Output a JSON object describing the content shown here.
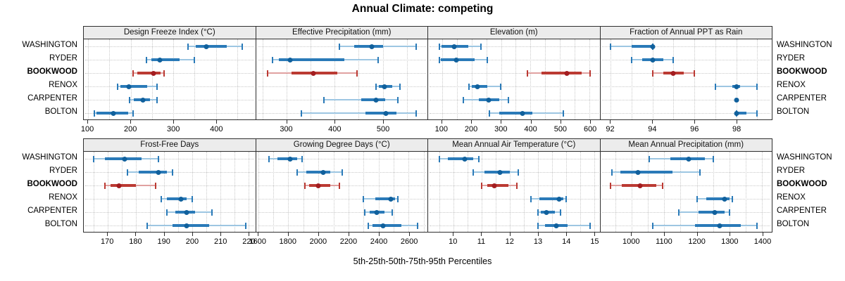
{
  "title": "Annual Climate: competing",
  "xlabel": "5th-25th-50th-75th-95th Percentiles",
  "colors": {
    "blue_whisker": "#9dc6e2",
    "blue_bar": "#2a7ab8",
    "blue_dot": "#10609c",
    "red_whisker": "#e0a1a0",
    "red_bar": "#bb3a33",
    "red_dot": "#a31d20",
    "grid": "#c9c9c9",
    "border": "#2e2e2e",
    "strip_bg": "#ececec"
  },
  "chart_data": {
    "type": "scatter",
    "variant": "five-number-percentile-dotplot",
    "title": "Annual Climate: competing",
    "xlabel": "5th-25th-50th-75th-95th Percentiles",
    "grid": true,
    "legend_position": "none",
    "percentiles": [
      "5th",
      "25th",
      "50th",
      "75th",
      "95th"
    ],
    "stations": [
      {
        "label": "WASHINGTON",
        "color": "blue",
        "bold": false
      },
      {
        "label": "RYDER",
        "color": "blue",
        "bold": false
      },
      {
        "label": "BOOKWOOD",
        "color": "red",
        "bold": true
      },
      {
        "label": "RENOX",
        "color": "blue",
        "bold": false
      },
      {
        "label": "CARPENTER",
        "color": "blue",
        "bold": false
      },
      {
        "label": "BOLTON",
        "color": "blue",
        "bold": false
      }
    ],
    "panels": [
      {
        "title": "Design Freeze Index (°C)",
        "xlim": [
          90,
          492
        ],
        "ticks": [
          100,
          200,
          300,
          400
        ],
        "grid_step": 50,
        "values": {
          "WASHINGTON": [
            335,
            352,
            377,
            425,
            462
          ],
          "RYDER": [
            237,
            249,
            268,
            314,
            350
          ],
          "BOOKWOOD": [
            206,
            216,
            253,
            270,
            278
          ],
          "RENOX": [
            170,
            176,
            196,
            238,
            261
          ],
          "CARPENTER": [
            197,
            208,
            228,
            246,
            261
          ],
          "BOLTON": [
            114,
            120,
            160,
            194,
            206
          ]
        }
      },
      {
        "title": "Effective Precipitation (mm)",
        "xlim": [
          236,
          593
        ],
        "ticks": [
          300,
          400,
          500
        ],
        "grid_step": 50,
        "values": {
          "WASHINGTON": [
            410,
            440,
            477,
            500,
            570
          ],
          "RYDER": [
            270,
            283,
            307,
            420,
            490
          ],
          "BOOKWOOD": [
            260,
            310,
            355,
            405,
            447
          ],
          "RENOX": [
            486,
            492,
            503,
            520,
            536
          ],
          "CARPENTER": [
            378,
            455,
            486,
            505,
            531
          ],
          "BOLTON": [
            331,
            464,
            506,
            528,
            569
          ]
        }
      },
      {
        "title": "Elevation (m)",
        "xlim": [
          53,
          634
        ],
        "ticks": [
          100,
          200,
          300,
          400,
          500,
          600
        ],
        "grid_step": 50,
        "values": {
          "WASHINGTON": [
            90,
            98,
            141,
            190,
            232
          ],
          "RYDER": [
            90,
            95,
            148,
            210,
            253
          ],
          "BOOKWOOD": [
            390,
            436,
            524,
            572,
            601
          ],
          "RENOX": [
            192,
            201,
            220,
            253,
            299
          ],
          "CARPENTER": [
            172,
            225,
            259,
            293,
            326
          ],
          "BOLTON": [
            261,
            293,
            373,
            405,
            510
          ]
        }
      },
      {
        "title": "Fraction of Annual PPT as Rain",
        "xlim": [
          91.5,
          99.7
        ],
        "ticks": [
          92,
          94,
          96,
          98
        ],
        "grid_step": 1,
        "values": {
          "WASHINGTON": [
            92,
            93,
            94,
            94,
            94
          ],
          "RYDER": [
            93,
            93.5,
            94,
            94.5,
            95
          ],
          "BOOKWOOD": [
            94,
            94.5,
            95,
            95.5,
            96
          ],
          "RENOX": [
            97,
            97.8,
            98,
            98.2,
            99
          ],
          "CARPENTER": [
            98,
            98,
            98,
            98,
            98
          ],
          "BOLTON": [
            98,
            98,
            98,
            98.5,
            99
          ]
        }
      },
      {
        "title": "Frost-Free Days",
        "xlim": [
          161.5,
          222.5
        ],
        "ticks": [
          170,
          180,
          190,
          200,
          210,
          220
        ],
        "grid_step": 5,
        "values": {
          "WASHINGTON": [
            165,
            169,
            176,
            182,
            188
          ],
          "RYDER": [
            177,
            181,
            188,
            191,
            193
          ],
          "BOOKWOOD": [
            169,
            171,
            174,
            180,
            187
          ],
          "RENOX": [
            189,
            191,
            196,
            198,
            200
          ],
          "CARPENTER": [
            191,
            194,
            198,
            201,
            207
          ],
          "BOLTON": [
            184,
            193,
            198,
            206,
            219
          ]
        }
      },
      {
        "title": "Growing Degree Days (°C)",
        "xlim": [
          1585,
          2725
        ],
        "ticks": [
          1600,
          1800,
          2000,
          2200,
          2400,
          2600
        ],
        "grid_step": 100,
        "values": {
          "WASHINGTON": [
            1670,
            1730,
            1810,
            1860,
            1890
          ],
          "RYDER": [
            1860,
            1920,
            2030,
            2080,
            2160
          ],
          "BOOKWOOD": [
            1910,
            1940,
            2000,
            2080,
            2140
          ],
          "RENOX": [
            2300,
            2380,
            2480,
            2510,
            2530
          ],
          "CARPENTER": [
            2310,
            2340,
            2390,
            2440,
            2490
          ],
          "BOLTON": [
            2330,
            2360,
            2430,
            2550,
            2660
          ]
        }
      },
      {
        "title": "Mean Annual Air Temperature (°C)",
        "xlim": [
          9.1,
          15.2
        ],
        "ticks": [
          10,
          11,
          12,
          13,
          14,
          15
        ],
        "grid_step": 0.5,
        "values": {
          "WASHINGTON": [
            9.5,
            9.8,
            10.4,
            10.7,
            10.9
          ],
          "RYDER": [
            10.7,
            11.1,
            11.65,
            12.0,
            12.3
          ],
          "BOOKWOOD": [
            11.0,
            11.2,
            11.45,
            11.95,
            12.25
          ],
          "RENOX": [
            12.75,
            13.05,
            13.75,
            13.9,
            14.0
          ],
          "CARPENTER": [
            13.0,
            13.1,
            13.3,
            13.6,
            13.8
          ],
          "BOLTON": [
            13.0,
            13.25,
            13.65,
            14.05,
            14.85
          ]
        }
      },
      {
        "title": "Mean Annual Precipitation (mm)",
        "xlim": [
          904,
          1430
        ],
        "ticks": [
          1000,
          1100,
          1200,
          1300,
          1400
        ],
        "grid_step": 50,
        "values": {
          "WASHINGTON": [
            1055,
            1120,
            1175,
            1225,
            1250
          ],
          "RYDER": [
            940,
            965,
            1020,
            1125,
            1210
          ],
          "BOOKWOOD": [
            935,
            970,
            1025,
            1075,
            1095
          ],
          "RENOX": [
            1200,
            1230,
            1285,
            1300,
            1310
          ],
          "CARPENTER": [
            1145,
            1205,
            1255,
            1285,
            1300
          ],
          "BOLTON": [
            1065,
            1195,
            1270,
            1335,
            1385
          ]
        }
      }
    ]
  }
}
